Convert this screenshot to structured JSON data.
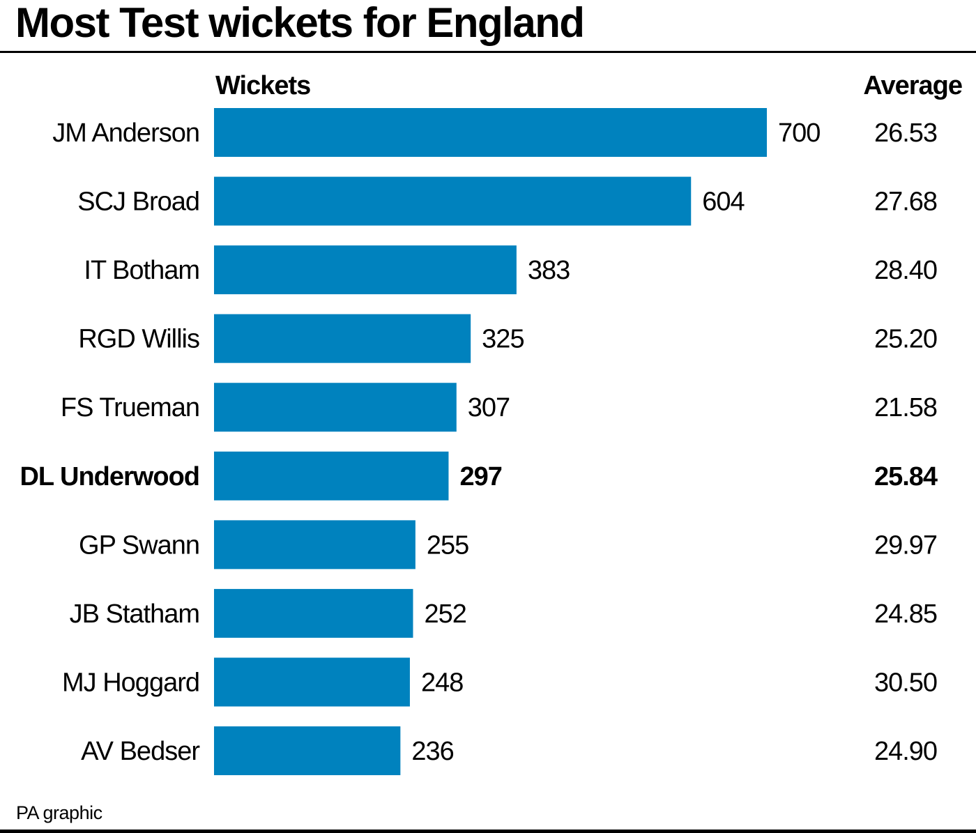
{
  "chart_data": {
    "type": "bar",
    "orientation": "horizontal",
    "title": "Most Test wickets for England",
    "column_headers": {
      "values": "Wickets",
      "average": "Average"
    },
    "categories": [
      "JM Anderson",
      "SCJ Broad",
      "IT Botham",
      "RGD Willis",
      "FS Trueman",
      "DL Underwood",
      "GP Swann",
      "JB Statham",
      "MJ Hoggard",
      "AV Bedser"
    ],
    "values": [
      700,
      604,
      383,
      325,
      307,
      297,
      255,
      252,
      248,
      236
    ],
    "averages": [
      "26.53",
      "27.68",
      "28.40",
      "25.20",
      "21.58",
      "25.84",
      "29.97",
      "24.85",
      "30.50",
      "24.90"
    ],
    "highlighted": "DL Underwood",
    "bar_color": "#0082be",
    "xlim": [
      0,
      700
    ],
    "grid": false
  },
  "source": "PA graphic"
}
